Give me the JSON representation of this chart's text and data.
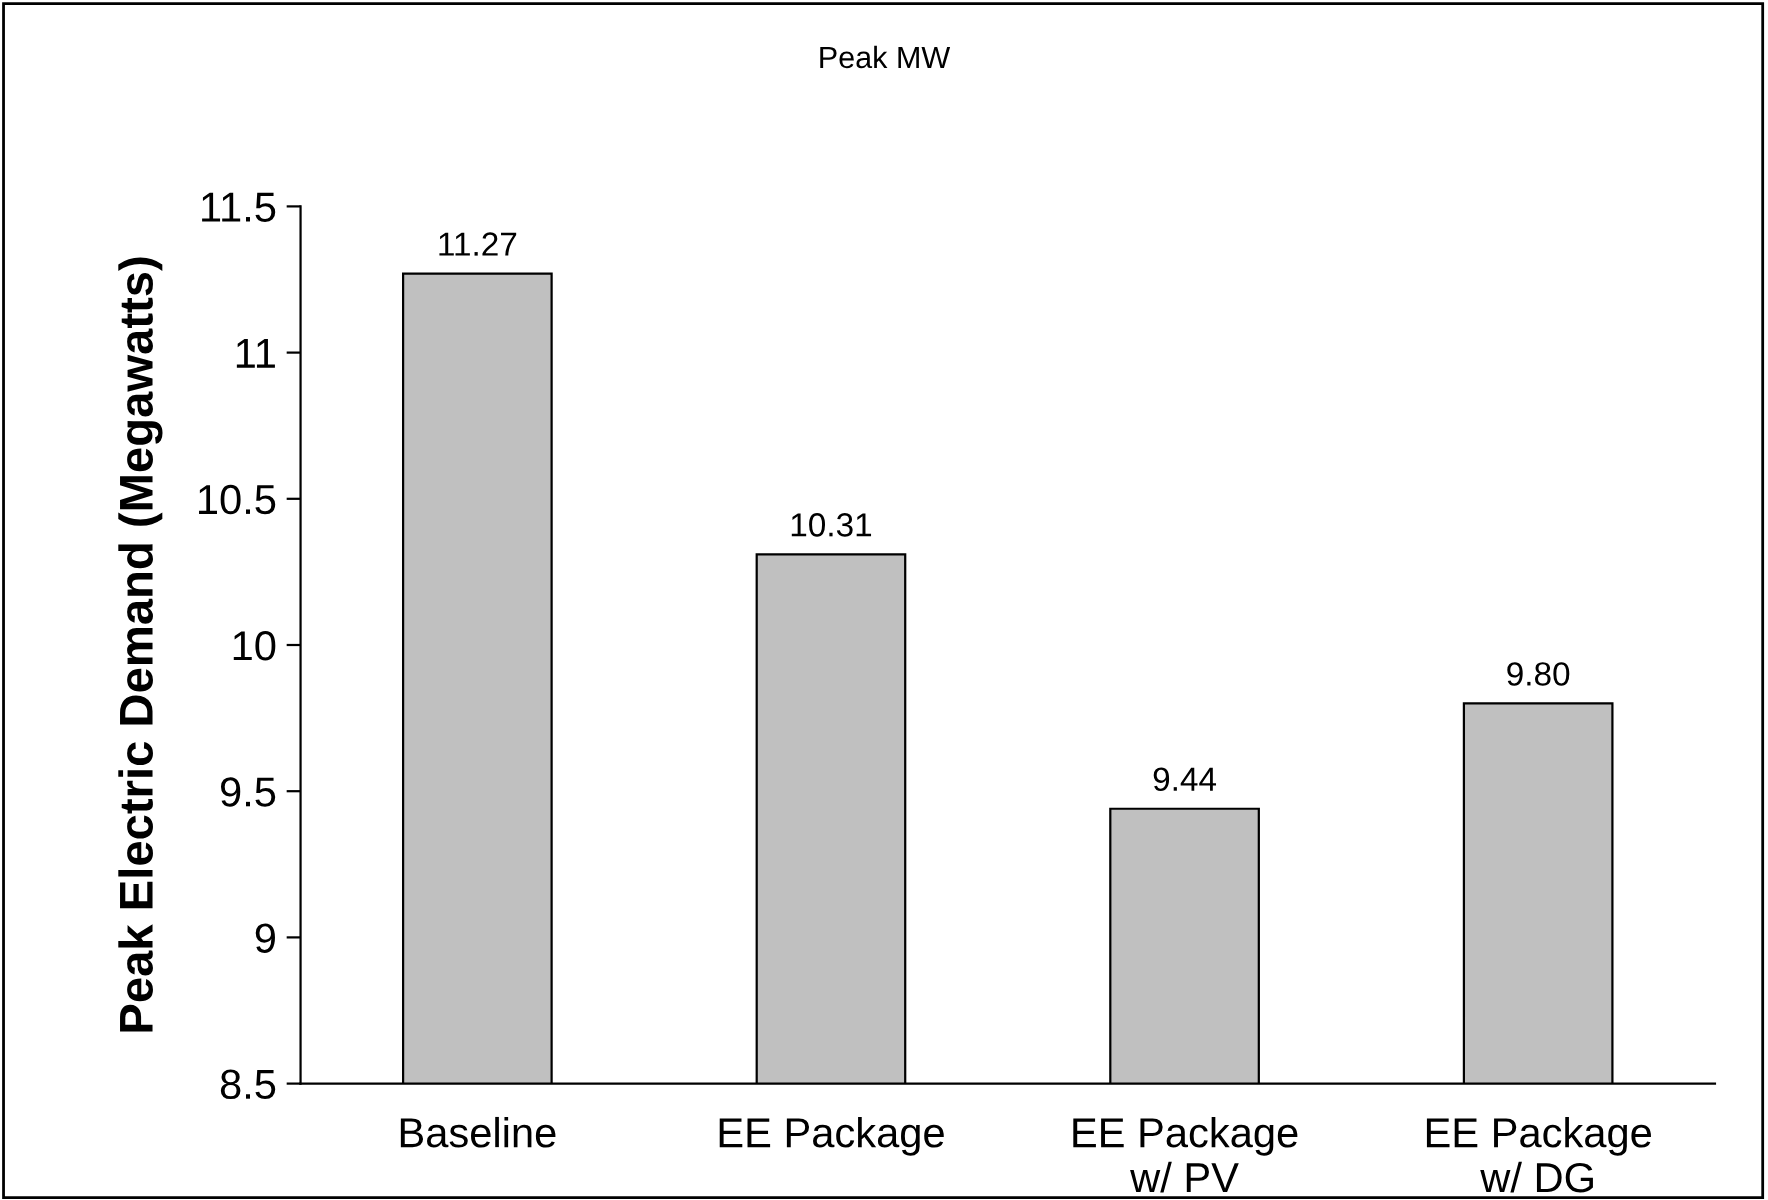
{
  "chart_data": {
    "type": "bar",
    "title": "Peak MW",
    "ylabel": "Peak Electric Demand (Megawatts)",
    "categories": [
      "Baseline",
      "EE Package",
      "EE Package\nw/ PV",
      "EE Package\nw/ DG"
    ],
    "values": [
      11.27,
      10.31,
      9.44,
      9.8
    ],
    "value_labels": [
      "11.27",
      "10.31",
      "9.44",
      "9.80"
    ],
    "color": "#c0c0c0",
    "ylim": [
      8.5,
      11.5
    ],
    "yticks": [
      8.5,
      9,
      9.5,
      10,
      10.5,
      11,
      11.5
    ],
    "grid": false,
    "legend": false
  }
}
